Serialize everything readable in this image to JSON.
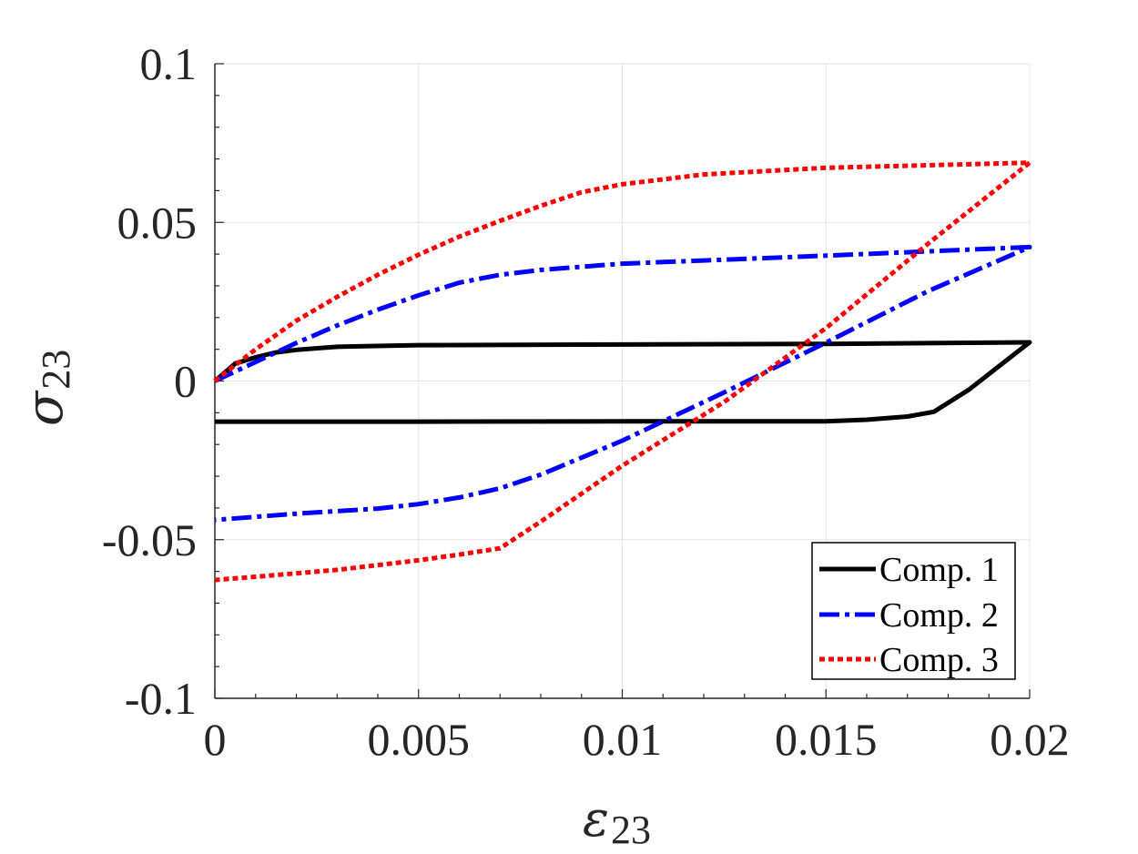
{
  "chart_data": {
    "type": "line",
    "title": "",
    "xlabel": {
      "symbol": "ε",
      "subscript": "23"
    },
    "ylabel": {
      "symbol": "σ",
      "subscript": "23"
    },
    "xlim": [
      0,
      0.02
    ],
    "ylim": [
      -0.1,
      0.1
    ],
    "xticks": [
      0,
      0.005,
      0.01,
      0.015,
      0.02
    ],
    "xtick_labels": [
      "0",
      "0.005",
      "0.01",
      "0.015",
      "0.02"
    ],
    "yticks": [
      0.1,
      0.05,
      0,
      -0.05,
      -0.1
    ],
    "ytick_labels": [
      "0.1",
      "0.05",
      "0",
      "-0.05",
      "-0.1"
    ],
    "grid": true,
    "legend_position": "bottom-right",
    "series": [
      {
        "name": "Comp. 1",
        "color": "#000000",
        "dash": "solid",
        "x": [
          0,
          0.0005,
          0.001,
          0.0015,
          0.002,
          0.003,
          0.005,
          0.01,
          0.015,
          0.02,
          0.0195,
          0.019,
          0.0185,
          0.01765,
          0.017,
          0.016,
          0.015,
          0.01,
          0.005,
          0
        ],
        "y": [
          0,
          0.0055,
          0.0075,
          0.009,
          0.0098,
          0.0108,
          0.0113,
          0.0115,
          0.0117,
          0.0122,
          0.0072,
          0.0022,
          -0.0028,
          -0.0097,
          -0.0112,
          -0.0122,
          -0.0127,
          -0.0127,
          -0.0128,
          -0.0128
        ]
      },
      {
        "name": "Comp. 2",
        "color": "#0000ff",
        "dash": "dashdot",
        "x": [
          0,
          0.001,
          0.002,
          0.003,
          0.004,
          0.005,
          0.006,
          0.007,
          0.008,
          0.009,
          0.01,
          0.012,
          0.015,
          0.02,
          0.0175,
          0.015,
          0.0125,
          0.01,
          0.008,
          0.007,
          0.006,
          0.005,
          0.004,
          0.002,
          0
        ],
        "y": [
          0,
          0.006,
          0.012,
          0.0175,
          0.0225,
          0.027,
          0.031,
          0.0335,
          0.035,
          0.036,
          0.037,
          0.038,
          0.0395,
          0.0422,
          0.0283,
          0.0121,
          -0.0036,
          -0.0188,
          -0.0295,
          -0.0338,
          -0.0367,
          -0.0388,
          -0.0402,
          -0.0418,
          -0.0438
        ]
      },
      {
        "name": "Comp. 3",
        "color": "#ff0000",
        "dash": "dotted",
        "x": [
          0,
          0.001,
          0.002,
          0.003,
          0.004,
          0.005,
          0.006,
          0.007,
          0.008,
          0.009,
          0.01,
          0.012,
          0.015,
          0.02,
          0.0175,
          0.015,
          0.0125,
          0.01,
          0.008,
          0.007,
          0.006,
          0.005,
          0.003,
          0.001,
          0
        ],
        "y": [
          0,
          0.01,
          0.019,
          0.0265,
          0.0335,
          0.0398,
          0.0455,
          0.0505,
          0.0552,
          0.0595,
          0.062,
          0.0651,
          0.0672,
          0.0688,
          0.0432,
          0.0167,
          -0.0066,
          -0.0267,
          -0.0443,
          -0.0527,
          -0.0547,
          -0.0565,
          -0.0595,
          -0.0617,
          -0.0627
        ]
      }
    ]
  }
}
